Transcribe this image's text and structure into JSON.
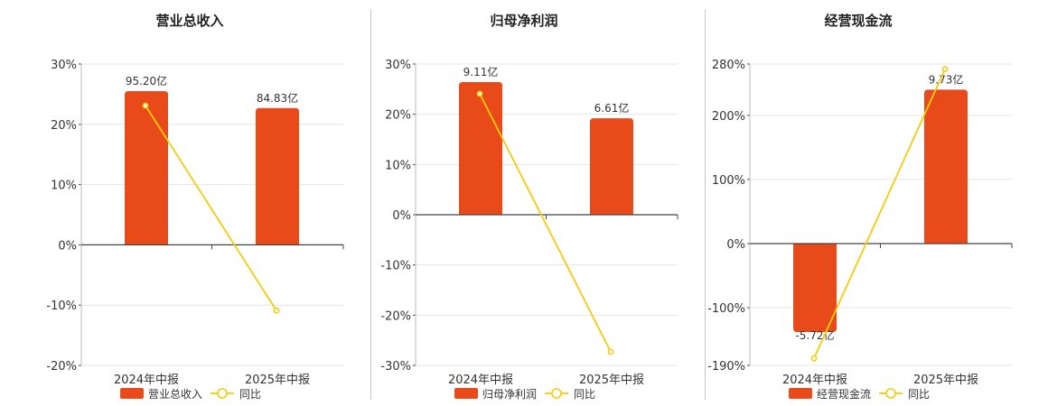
{
  "colors": {
    "bar": "#e84a1a",
    "line": "#f2cc0c",
    "grid": "#e4e4e4",
    "axis": "#444444"
  },
  "chart_data": [
    {
      "type": "bar",
      "title": "营业总收入",
      "categories": [
        "2024年中报",
        "2025年中报"
      ],
      "ylim": [
        -20,
        30
      ],
      "yticks": [
        30,
        20,
        10,
        0,
        -10,
        -20
      ],
      "ytick_labels": [
        "30%",
        "20%",
        "10%",
        "0%",
        "-10%",
        "-20%"
      ],
      "series": [
        {
          "name": "营业总收入",
          "kind": "bar",
          "values": [
            25.5,
            22.7
          ],
          "labels": [
            "95.20亿",
            "84.83亿"
          ]
        },
        {
          "name": "同比",
          "kind": "line",
          "values": [
            23.1,
            -10.9
          ]
        }
      ],
      "legend": "bottom"
    },
    {
      "type": "bar",
      "title": "归母净利润",
      "categories": [
        "2024年中报",
        "2025年中报"
      ],
      "ylim": [
        -30,
        30
      ],
      "yticks": [
        30,
        20,
        10,
        0,
        -10,
        -20,
        -30
      ],
      "ytick_labels": [
        "30%",
        "20%",
        "10%",
        "0%",
        "-10%",
        "-20%",
        "-30%"
      ],
      "series": [
        {
          "name": "归母净利润",
          "kind": "bar",
          "values": [
            26.4,
            19.2
          ],
          "labels": [
            "9.11亿",
            "6.61亿"
          ]
        },
        {
          "name": "同比",
          "kind": "line",
          "values": [
            24.1,
            -27.3
          ]
        }
      ],
      "legend": "bottom"
    },
    {
      "type": "bar",
      "title": "经营现金流",
      "categories": [
        "2024年中报",
        "2025年中报"
      ],
      "ylim": [
        -190,
        280
      ],
      "yticks": [
        280,
        200,
        100,
        0,
        -100,
        -190
      ],
      "ytick_labels": [
        "280%",
        "200%",
        "100%",
        "0%",
        "-100%",
        "-190%"
      ],
      "series": [
        {
          "name": "经营现金流",
          "kind": "bar",
          "values": [
            -138,
            240
          ],
          "labels": [
            "-5.72亿",
            "9.73亿"
          ]
        },
        {
          "name": "同比",
          "kind": "line",
          "values": [
            -179,
            272
          ]
        }
      ],
      "legend": "bottom"
    }
  ]
}
